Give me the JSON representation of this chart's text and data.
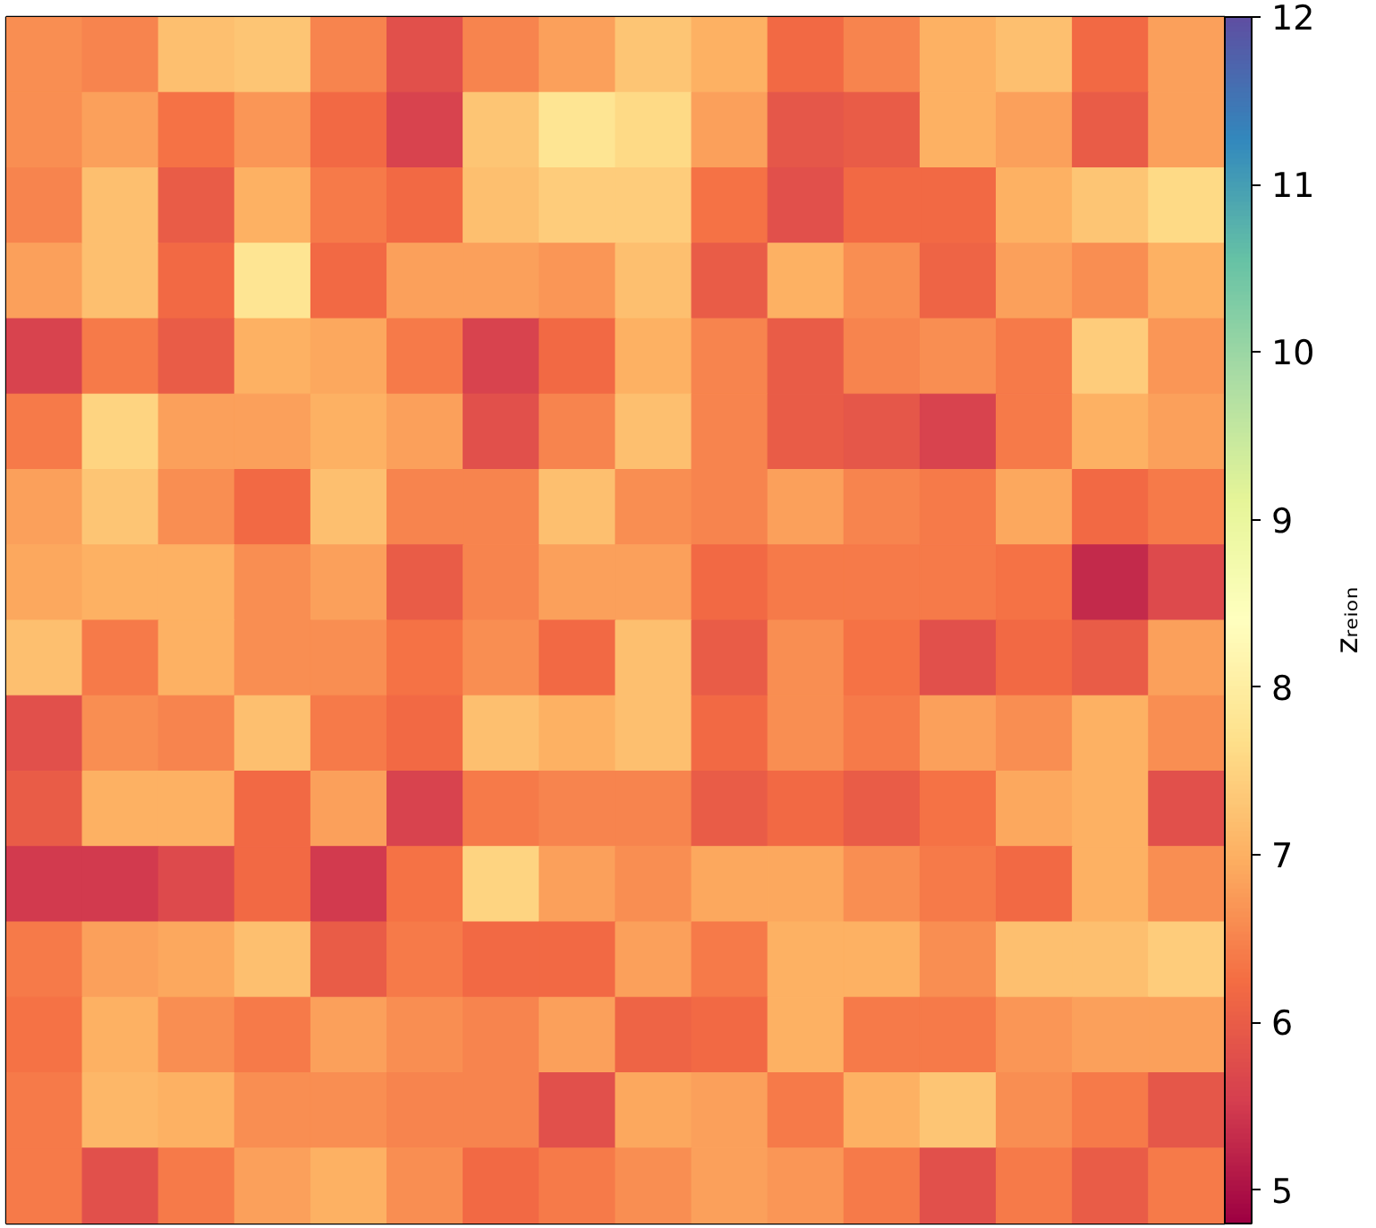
{
  "chart_data": {
    "type": "heatmap",
    "categories": [
      null,
      null,
      null,
      null,
      null,
      null,
      null,
      null,
      null,
      null,
      null,
      null,
      null,
      null,
      null,
      null
    ],
    "y_categories": [
      null,
      null,
      null,
      null,
      null,
      null,
      null,
      null,
      null,
      null,
      null,
      null,
      null,
      null,
      null,
      null
    ],
    "cells": [
      [
        6.6,
        6.5,
        7.2,
        7.3,
        6.5,
        5.8,
        6.5,
        6.8,
        7.3,
        7.0,
        6.2,
        6.5,
        7.0,
        7.2,
        6.2,
        6.8
      ],
      [
        6.6,
        6.8,
        6.3,
        6.7,
        6.2,
        5.6,
        7.3,
        7.8,
        7.6,
        6.8,
        5.9,
        6.0,
        7.0,
        6.8,
        6.0,
        6.8
      ],
      [
        6.5,
        7.2,
        6.0,
        7.0,
        6.4,
        6.2,
        7.2,
        7.4,
        7.4,
        6.3,
        5.8,
        6.2,
        6.2,
        7.0,
        7.3,
        7.6
      ],
      [
        6.8,
        7.2,
        6.2,
        7.8,
        6.2,
        6.8,
        6.8,
        6.7,
        7.2,
        6.0,
        7.0,
        6.6,
        6.1,
        6.8,
        6.6,
        7.0
      ],
      [
        5.6,
        6.4,
        6.0,
        7.0,
        6.9,
        6.4,
        5.6,
        6.2,
        7.0,
        6.5,
        6.0,
        6.5,
        6.6,
        6.4,
        7.4,
        6.7
      ],
      [
        6.4,
        7.5,
        6.8,
        6.8,
        7.0,
        6.8,
        5.8,
        6.5,
        7.2,
        6.5,
        6.0,
        5.9,
        5.6,
        6.4,
        7.0,
        6.8
      ],
      [
        6.8,
        7.3,
        6.6,
        6.2,
        7.2,
        6.5,
        6.5,
        7.2,
        6.6,
        6.5,
        6.8,
        6.5,
        6.4,
        6.9,
        6.2,
        6.4
      ],
      [
        6.9,
        7.0,
        7.0,
        6.6,
        6.8,
        6.0,
        6.5,
        6.8,
        6.8,
        6.2,
        6.4,
        6.4,
        6.4,
        6.3,
        5.3,
        5.7
      ],
      [
        7.2,
        6.4,
        7.0,
        6.6,
        6.6,
        6.3,
        6.6,
        6.2,
        7.2,
        6.0,
        6.6,
        6.3,
        5.8,
        6.2,
        6.0,
        6.8
      ],
      [
        5.8,
        6.6,
        6.5,
        7.2,
        6.4,
        6.2,
        7.2,
        7.0,
        7.2,
        6.2,
        6.6,
        6.4,
        6.8,
        6.6,
        7.0,
        6.6
      ],
      [
        6.0,
        7.0,
        7.0,
        6.2,
        6.8,
        5.6,
        6.4,
        6.5,
        6.5,
        6.0,
        6.2,
        6.0,
        6.3,
        6.9,
        7.0,
        5.8
      ],
      [
        5.5,
        5.5,
        5.7,
        6.2,
        5.5,
        6.3,
        7.5,
        6.8,
        6.6,
        6.9,
        6.9,
        6.6,
        6.4,
        6.2,
        7.0,
        6.6
      ],
      [
        6.4,
        6.8,
        6.9,
        7.2,
        6.0,
        6.4,
        6.2,
        6.2,
        6.8,
        6.4,
        7.0,
        7.0,
        6.6,
        7.2,
        7.2,
        7.4
      ],
      [
        6.3,
        7.0,
        6.6,
        6.4,
        6.8,
        6.6,
        6.5,
        6.8,
        6.1,
        6.2,
        7.0,
        6.4,
        6.4,
        6.7,
        6.8,
        6.8
      ],
      [
        6.4,
        7.1,
        7.0,
        6.6,
        6.6,
        6.5,
        6.5,
        5.8,
        6.9,
        6.8,
        6.4,
        7.0,
        7.3,
        6.6,
        6.4,
        5.9
      ],
      [
        6.4,
        5.8,
        6.4,
        6.8,
        7.0,
        6.6,
        6.2,
        6.4,
        6.6,
        6.8,
        6.7,
        6.4,
        5.8,
        6.4,
        6.0,
        6.4
      ]
    ],
    "clim": [
      4.8,
      12
    ],
    "cticks": [
      5,
      6,
      7,
      8,
      9,
      10,
      11,
      12
    ],
    "clabel": "zᵣₑᵢₒₙ",
    "tick_labels": false
  }
}
